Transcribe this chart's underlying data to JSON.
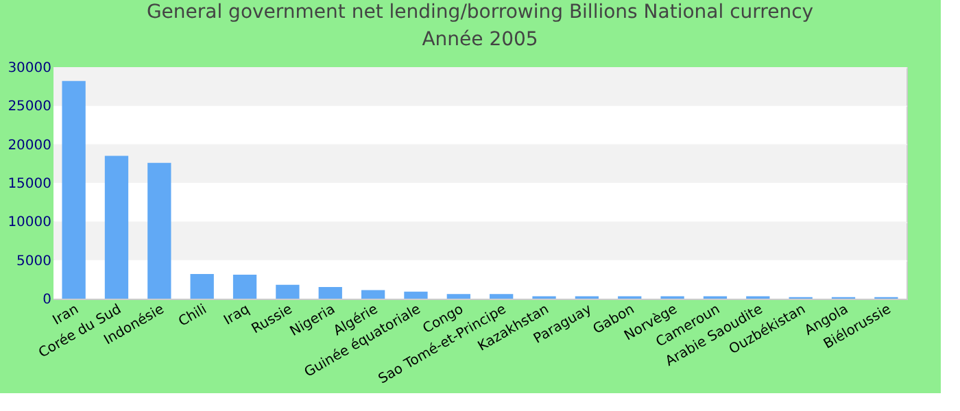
{
  "chart_data": {
    "type": "bar",
    "title": "General government net lending/borrowing Billions National currency",
    "subtitle": "Année 2005",
    "categories": [
      "Iran",
      "Corée du Sud",
      "Indonésie",
      "Chili",
      "Iraq",
      "Russie",
      "Nigeria",
      "Algérie",
      "Guinée équatoriale",
      "Congo",
      "Sao Tomé-et-Principe",
      "Kazakhstan",
      "Paraguay",
      "Gabon",
      "Norvège",
      "Cameroun",
      "Arabie Saoudite",
      "Ouzbékistan",
      "Angola",
      "Biélorussie"
    ],
    "values": [
      28200,
      18500,
      17600,
      3200,
      3100,
      1800,
      1500,
      1100,
      900,
      600,
      600,
      300,
      300,
      300,
      300,
      300,
      300,
      200,
      200,
      200
    ],
    "color": "#61a9f5",
    "ylim": [
      0,
      30000
    ],
    "yticks": [
      0,
      5000,
      10000,
      15000,
      20000,
      25000,
      30000
    ],
    "grid": "y"
  }
}
